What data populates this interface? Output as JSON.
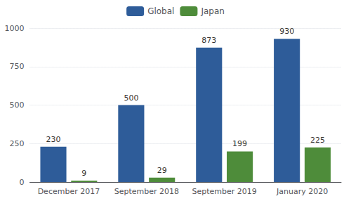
{
  "chart_data": {
    "type": "bar",
    "categories": [
      "December 2017",
      "September 2018",
      "September 2019",
      "January 2020"
    ],
    "series": [
      {
        "name": "Global",
        "color": "#2E5C99",
        "values": [
          230,
          500,
          873,
          930
        ]
      },
      {
        "name": "Japan",
        "color": "#4E8C3A",
        "values": [
          9,
          29,
          199,
          225
        ]
      }
    ],
    "ylim": [
      0,
      1000
    ],
    "yticks": [
      0,
      250,
      500,
      750,
      1000
    ],
    "grid": true,
    "legend": "top",
    "data_labels": true
  }
}
